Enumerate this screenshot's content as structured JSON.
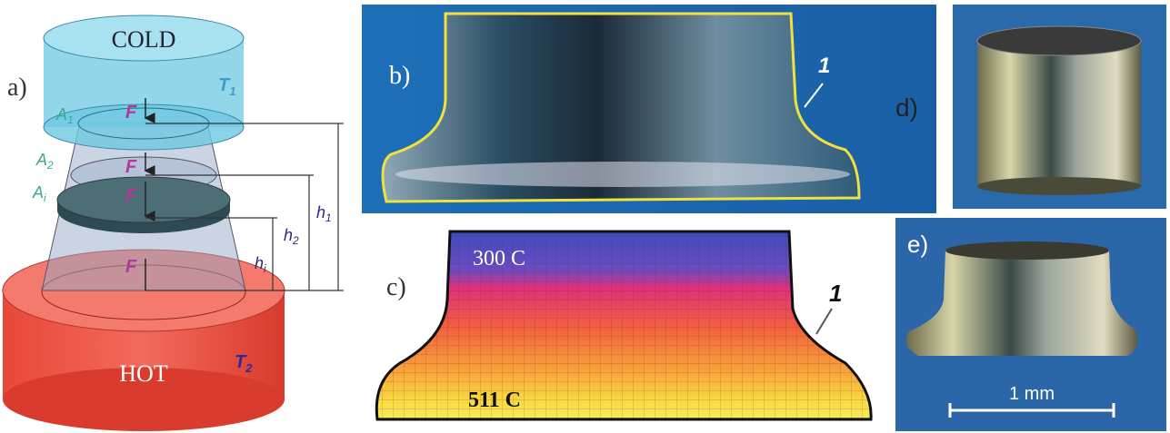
{
  "panels": {
    "a": {
      "label": "a)",
      "top": "COLD",
      "bottom": "HOT",
      "temps": [
        {
          "main": "T",
          "sub": "1"
        },
        {
          "main": "T",
          "sub": "2"
        }
      ],
      "areas": [
        {
          "main": "A",
          "sub": "1"
        },
        {
          "main": "A",
          "sub": "2"
        },
        {
          "main": "A",
          "sub": "i"
        }
      ],
      "forces": [
        "F",
        "F",
        "F",
        "F"
      ],
      "heights": [
        {
          "main": "h",
          "sub": "1"
        },
        {
          "main": "h",
          "sub": "2"
        },
        {
          "main": "h",
          "sub": "i"
        }
      ]
    },
    "b": {
      "label": "b)",
      "marker": "1"
    },
    "c": {
      "label": "c)",
      "marker": "1",
      "top_temp": "300 C",
      "bottom_temp": "511 C"
    },
    "d": {
      "label": "d)"
    },
    "e": {
      "label": "e)",
      "scale": "1 mm"
    }
  }
}
